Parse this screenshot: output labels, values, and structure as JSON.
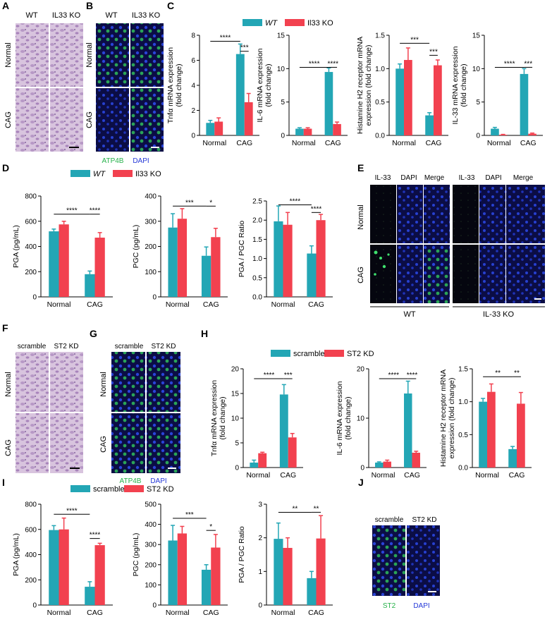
{
  "colors": {
    "wt": "#23a6b5",
    "ko": "#f2414f",
    "he_bg": "#cdb6d8",
    "if_bg": "#0a0a3a",
    "nuclei": "#2c3ee0",
    "atp4b": "#3fd46a"
  },
  "panels": {
    "A": {
      "letter": "A",
      "cols": [
        "WT",
        "IL33 KO"
      ],
      "rows": [
        "Normal",
        "CAG"
      ]
    },
    "B": {
      "letter": "B",
      "cols": [
        "WT",
        "IL33 KO"
      ],
      "rows": [
        "Normal",
        "CAG"
      ],
      "legend": [
        "ATP4B",
        "DAPI"
      ]
    },
    "C": {
      "letter": "C",
      "legend": [
        "WT",
        "Il33 KO"
      ]
    },
    "D": {
      "letter": "D",
      "legend": [
        "WT",
        "Il33 KO"
      ]
    },
    "E": {
      "letter": "E",
      "cols": [
        "IL-33",
        "DAPI",
        "Merge",
        "IL-33",
        "DAPI",
        "Merge"
      ],
      "rows": [
        "Normal",
        "CAG"
      ],
      "groups": [
        "WT",
        "IL-33 KO"
      ]
    },
    "F": {
      "letter": "F",
      "cols": [
        "scramble",
        "ST2 KD"
      ],
      "rows": [
        "Normal",
        "CAG"
      ]
    },
    "G": {
      "letter": "G",
      "cols": [
        "scramble",
        "ST2 KD"
      ],
      "rows": [
        "Normal",
        "CAG"
      ],
      "legend": [
        "ATP4B",
        "DAPI"
      ]
    },
    "H": {
      "letter": "H",
      "legend": [
        "scramble",
        "ST2 KD"
      ]
    },
    "I": {
      "letter": "I",
      "legend": [
        "scramble",
        "ST2 KD"
      ]
    },
    "J": {
      "letter": "J",
      "cols": [
        "scramble",
        "ST2 KD"
      ],
      "legend": [
        "ST2",
        "DAPI"
      ]
    }
  },
  "chart_data": [
    {
      "id": "C1",
      "type": "bar",
      "categories": [
        "Normal",
        "CAG"
      ],
      "ylabel": "Tnfα mRNA expression\n(fold change)",
      "ylim": [
        0,
        8
      ],
      "yticks": [
        0,
        2,
        4,
        6,
        8
      ],
      "series": [
        {
          "name": "WT",
          "values": [
            1.0,
            6.5
          ],
          "err": [
            0.2,
            0.8
          ]
        },
        {
          "name": "Il33 KO",
          "values": [
            1.1,
            2.65
          ],
          "err": [
            0.3,
            0.7
          ]
        }
      ],
      "sig": [
        {
          "label": "****",
          "from": [
            0,
            0
          ],
          "to": [
            1,
            0
          ],
          "level": 0.94
        },
        {
          "label": "***",
          "from": [
            1,
            0
          ],
          "to": [
            1,
            1
          ],
          "level": 0.84
        }
      ]
    },
    {
      "id": "C2",
      "type": "bar",
      "categories": [
        "Normal",
        "CAG"
      ],
      "ylabel": "IL-6 mRNA expression\n(fold change)",
      "ylim": [
        0,
        15
      ],
      "yticks": [
        0,
        5,
        10,
        15
      ],
      "series": [
        {
          "name": "WT",
          "values": [
            1.0,
            9.5
          ],
          "err": [
            0.15,
            0.6
          ]
        },
        {
          "name": "Il33 KO",
          "values": [
            1.0,
            1.7
          ],
          "err": [
            0.15,
            0.3
          ]
        }
      ],
      "sig": [
        {
          "label": "****",
          "from": [
            0,
            0
          ],
          "to": [
            1,
            0
          ],
          "level": 0.68
        },
        {
          "label": "****",
          "from": [
            1,
            0
          ],
          "to": [
            1,
            1
          ],
          "level": 0.68
        }
      ]
    },
    {
      "id": "C3",
      "type": "bar",
      "categories": [
        "Normal",
        "CAG"
      ],
      "ylabel": "Histamine H2 receptor mRNA\nexpression (fold change)",
      "ylim": [
        0,
        1.5
      ],
      "yticks": [
        0.0,
        0.5,
        1.0,
        1.5
      ],
      "series": [
        {
          "name": "WT",
          "values": [
            1.0,
            0.3
          ],
          "err": [
            0.07,
            0.04
          ]
        },
        {
          "name": "Il33 KO",
          "values": [
            1.13,
            1.05
          ],
          "err": [
            0.18,
            0.08
          ]
        }
      ],
      "sig": [
        {
          "label": "***",
          "from": [
            0,
            0
          ],
          "to": [
            1,
            0
          ],
          "level": 0.92
        },
        {
          "label": "***",
          "from": [
            1,
            0
          ],
          "to": [
            1,
            1
          ],
          "level": 0.8
        }
      ]
    },
    {
      "id": "C4",
      "type": "bar",
      "categories": [
        "Normal",
        "CAG"
      ],
      "ylabel": "IL-33 mRNA expression\n(fold change)",
      "ylim": [
        0,
        15
      ],
      "yticks": [
        0,
        5,
        10,
        15
      ],
      "series": [
        {
          "name": "WT",
          "values": [
            1.0,
            9.2
          ],
          "err": [
            0.2,
            0.8
          ]
        },
        {
          "name": "Il33 KO",
          "values": [
            0.1,
            0.25
          ],
          "err": [
            0.05,
            0.1
          ]
        }
      ],
      "sig": [
        {
          "label": "****",
          "from": [
            0,
            0
          ],
          "to": [
            1,
            0
          ],
          "level": 0.68
        },
        {
          "label": "***",
          "from": [
            1,
            0
          ],
          "to": [
            1,
            1
          ],
          "level": 0.68
        }
      ]
    },
    {
      "id": "D1",
      "type": "bar",
      "categories": [
        "Normal",
        "CAG"
      ],
      "ylabel": "PGA (pg/mL)",
      "ylim": [
        0,
        800
      ],
      "yticks": [
        0,
        200,
        400,
        600,
        800
      ],
      "series": [
        {
          "name": "WT",
          "values": [
            520,
            180
          ],
          "err": [
            18,
            25
          ]
        },
        {
          "name": "Il33 KO",
          "values": [
            575,
            470
          ],
          "err": [
            25,
            40
          ]
        }
      ],
      "sig": [
        {
          "label": "****",
          "from": [
            0,
            0
          ],
          "to": [
            1,
            0
          ],
          "level": 0.82
        },
        {
          "label": "****",
          "from": [
            1,
            0
          ],
          "to": [
            1,
            1
          ],
          "level": 0.82
        }
      ]
    },
    {
      "id": "D2",
      "type": "bar",
      "categories": [
        "Normal",
        "CAG"
      ],
      "ylabel": "PGC (pg/mL)",
      "ylim": [
        0,
        400
      ],
      "yticks": [
        0,
        100,
        200,
        300,
        400
      ],
      "series": [
        {
          "name": "WT",
          "values": [
            275,
            163
          ],
          "err": [
            55,
            35
          ]
        },
        {
          "name": "Il33 KO",
          "values": [
            310,
            237
          ],
          "err": [
            40,
            35
          ]
        }
      ],
      "sig": [
        {
          "label": "***",
          "from": [
            0,
            0
          ],
          "to": [
            1,
            0
          ],
          "level": 0.9
        },
        {
          "label": "*",
          "from": [
            1,
            0
          ],
          "to": [
            1,
            1
          ],
          "level": 0.9
        }
      ]
    },
    {
      "id": "D3",
      "type": "bar",
      "categories": [
        "Normal",
        "CAG"
      ],
      "ylabel": "PGA / PGC Ratio",
      "ylim": [
        0,
        2.5
      ],
      "yticks": [
        0.0,
        0.5,
        1.0,
        1.5,
        2.0,
        2.5
      ],
      "series": [
        {
          "name": "WT",
          "values": [
            1.97,
            1.13
          ],
          "err": [
            0.4,
            0.2
          ]
        },
        {
          "name": "Il33 KO",
          "values": [
            1.88,
            2.0
          ],
          "err": [
            0.32,
            0.15
          ]
        }
      ],
      "sig": [
        {
          "label": "****",
          "from": [
            0,
            0
          ],
          "to": [
            1,
            0
          ],
          "level": 0.96
        },
        {
          "label": "****",
          "from": [
            1,
            0
          ],
          "to": [
            1,
            1
          ],
          "level": 0.88
        }
      ]
    },
    {
      "id": "H1",
      "type": "bar",
      "categories": [
        "Normal",
        "CAG"
      ],
      "ylabel": "Tnfα mRNA expression\n(fold change)",
      "ylim": [
        0,
        20
      ],
      "yticks": [
        0,
        5,
        10,
        15,
        20
      ],
      "series": [
        {
          "name": "scramble",
          "values": [
            1.0,
            14.8
          ],
          "err": [
            0.5,
            2.0
          ]
        },
        {
          "name": "ST2 KD",
          "values": [
            2.9,
            6.1
          ],
          "err": [
            0.2,
            0.8
          ]
        }
      ],
      "sig": [
        {
          "label": "****",
          "from": [
            0,
            0
          ],
          "to": [
            1,
            0
          ],
          "level": 0.9
        },
        {
          "label": "***",
          "from": [
            1,
            0
          ],
          "to": [
            1,
            1
          ],
          "level": 0.9
        }
      ]
    },
    {
      "id": "H2",
      "type": "bar",
      "categories": [
        "Normal",
        "CAG"
      ],
      "ylabel": "IL-6 mRNA expression\n(fold change)",
      "ylim": [
        0,
        20
      ],
      "yticks": [
        0,
        10,
        20
      ],
      "series": [
        {
          "name": "scramble",
          "values": [
            1.0,
            15.0
          ],
          "err": [
            0.15,
            2.5
          ]
        },
        {
          "name": "ST2 KD",
          "values": [
            1.2,
            3.0
          ],
          "err": [
            0.3,
            0.3
          ]
        }
      ],
      "sig": [
        {
          "label": "****",
          "from": [
            0,
            0
          ],
          "to": [
            1,
            0
          ],
          "level": 0.9
        },
        {
          "label": "****",
          "from": [
            1,
            0
          ],
          "to": [
            1,
            1
          ],
          "level": 0.9
        }
      ]
    },
    {
      "id": "H3",
      "type": "bar",
      "categories": [
        "Normal",
        "CAG"
      ],
      "ylabel": "Histamine H2 receptor mRNA\nexpression (fold change)",
      "ylim": [
        0,
        1.5
      ],
      "yticks": [
        0.0,
        0.5,
        1.0,
        1.5
      ],
      "series": [
        {
          "name": "scramble",
          "values": [
            1.0,
            0.28
          ],
          "err": [
            0.05,
            0.04
          ]
        },
        {
          "name": "ST2 KD",
          "values": [
            1.15,
            0.97
          ],
          "err": [
            0.12,
            0.17
          ]
        }
      ],
      "sig": [
        {
          "label": "**",
          "from": [
            0,
            0
          ],
          "to": [
            1,
            0
          ],
          "level": 0.92
        },
        {
          "label": "**",
          "from": [
            1,
            0
          ],
          "to": [
            1,
            1
          ],
          "level": 0.92
        }
      ]
    },
    {
      "id": "I1",
      "type": "bar",
      "categories": [
        "Normal",
        "CAG"
      ],
      "ylabel": "PGA (pg/mL)",
      "ylim": [
        0,
        800
      ],
      "yticks": [
        0,
        200,
        400,
        600,
        800
      ],
      "series": [
        {
          "name": "scramble",
          "values": [
            595,
            145
          ],
          "err": [
            35,
            40
          ]
        },
        {
          "name": "ST2 KD",
          "values": [
            600,
            475
          ],
          "err": [
            90,
            15
          ]
        }
      ],
      "sig": [
        {
          "label": "****",
          "from": [
            0,
            0
          ],
          "to": [
            1,
            0
          ],
          "level": 0.9
        },
        {
          "label": "****",
          "from": [
            1,
            0
          ],
          "to": [
            1,
            1
          ],
          "level": 0.66
        }
      ]
    },
    {
      "id": "I2",
      "type": "bar",
      "categories": [
        "Normal",
        "CAG"
      ],
      "ylabel": "PGC (pg/mL)",
      "ylim": [
        0,
        500
      ],
      "yticks": [
        0,
        100,
        200,
        300,
        400,
        500
      ],
      "series": [
        {
          "name": "scramble",
          "values": [
            320,
            175
          ],
          "err": [
            75,
            25
          ]
        },
        {
          "name": "ST2 KD",
          "values": [
            355,
            285
          ],
          "err": [
            35,
            65
          ]
        }
      ],
      "sig": [
        {
          "label": "***",
          "from": [
            0,
            0
          ],
          "to": [
            1,
            0
          ],
          "level": 0.86
        },
        {
          "label": "*",
          "from": [
            1,
            0
          ],
          "to": [
            1,
            1
          ],
          "level": 0.74
        }
      ]
    },
    {
      "id": "I3",
      "type": "bar",
      "categories": [
        "Normal",
        "CAG"
      ],
      "ylabel": "PGA / PGC Ratio",
      "ylim": [
        0,
        3
      ],
      "yticks": [
        0,
        1,
        2,
        3
      ],
      "series": [
        {
          "name": "scramble",
          "values": [
            1.97,
            0.8
          ],
          "err": [
            0.47,
            0.2
          ]
        },
        {
          "name": "ST2 KD",
          "values": [
            1.7,
            1.98
          ],
          "err": [
            0.3,
            0.68
          ]
        }
      ],
      "sig": [
        {
          "label": "**",
          "from": [
            0,
            0
          ],
          "to": [
            1,
            0
          ],
          "level": 0.92
        },
        {
          "label": "**",
          "from": [
            1,
            0
          ],
          "to": [
            1,
            1
          ],
          "level": 0.92
        }
      ]
    }
  ]
}
